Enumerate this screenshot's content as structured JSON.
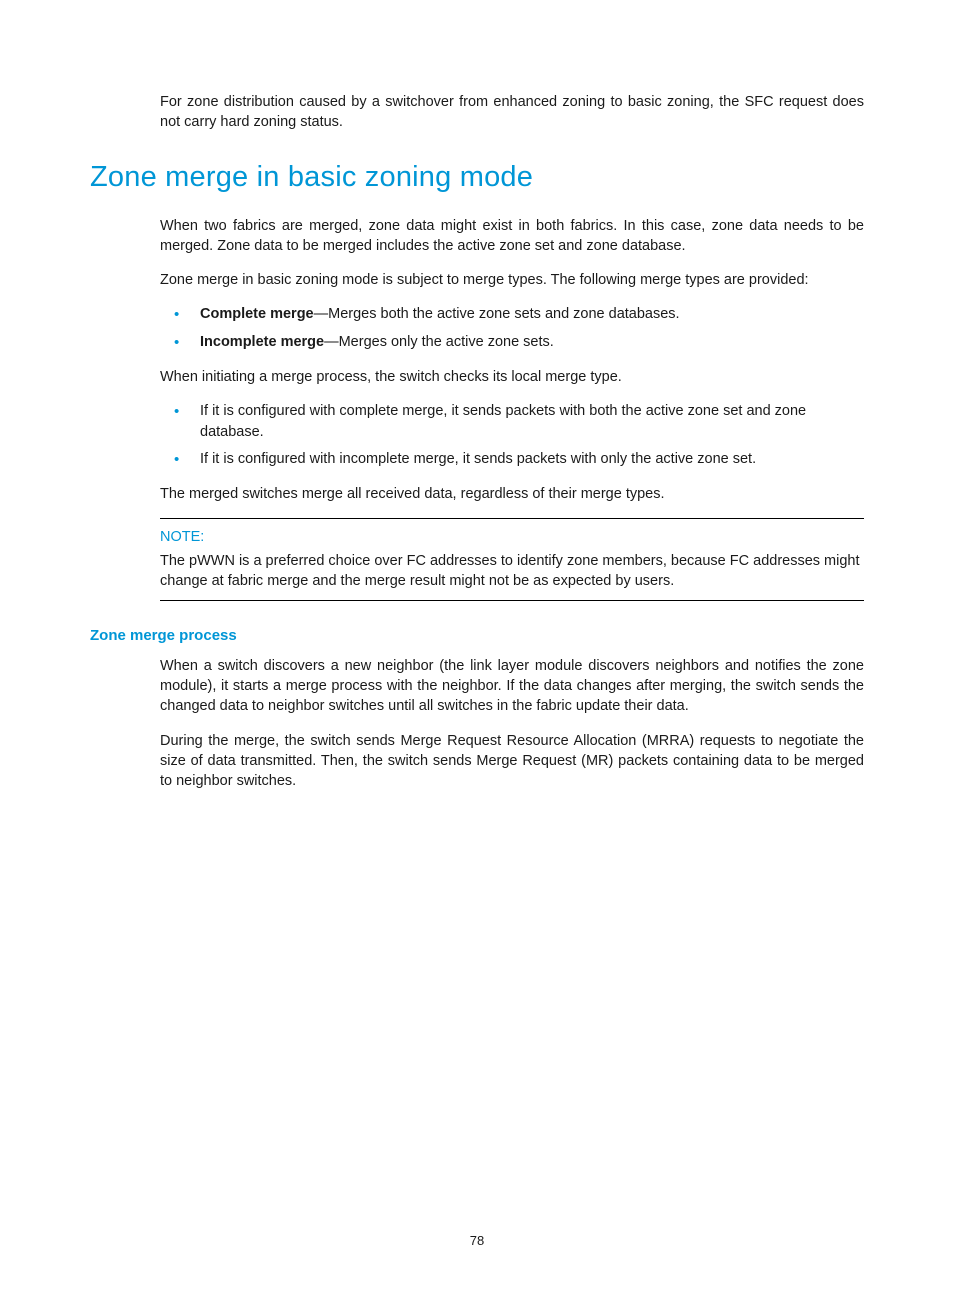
{
  "colors": {
    "accent": "#0096d6",
    "text": "#1a1a1a",
    "rule": "#000000",
    "background": "#ffffff"
  },
  "typography": {
    "body_fontsize_pt": 11,
    "h1_fontsize_pt": 22,
    "h3_fontsize_pt": 11,
    "font_family": "Arial"
  },
  "intro": "For zone distribution caused by a switchover from enhanced zoning to basic zoning, the SFC request does not carry hard zoning status.",
  "h1": "Zone merge in basic zoning mode",
  "p1": "When two fabrics are merged, zone data might exist in both fabrics. In this case, zone data needs to be merged. Zone data to be merged includes the active zone set and zone database.",
  "p2": "Zone merge in basic zoning mode is subject to merge types. The following merge types are provided:",
  "merge_types": [
    {
      "term": "Complete merge",
      "desc": "—Merges both the active zone sets and zone databases."
    },
    {
      "term": "Incomplete merge",
      "desc": "—Merges only the active zone sets."
    }
  ],
  "p3": "When initiating a merge process, the switch checks its local merge type.",
  "config_items": [
    "If it is configured with complete merge, it sends packets with both the active zone set and zone database.",
    "If it is configured with incomplete merge, it sends packets with only the active zone set."
  ],
  "p4": "The merged switches merge all received data, regardless of their merge types.",
  "note": {
    "label": "NOTE:",
    "text": "The pWWN is a preferred choice over FC addresses to identify zone members, because FC addresses might change at fabric merge and the merge result might not be as expected by users."
  },
  "h3": "Zone merge process",
  "p5": "When a switch discovers a new neighbor (the link layer module discovers neighbors and notifies the zone module), it starts a merge process with the neighbor. If the data changes after merging, the switch sends the changed data to neighbor switches until all switches in the fabric update their data.",
  "p6": "During the merge, the switch sends Merge Request Resource Allocation (MRRA) requests to negotiate the size of data transmitted. Then, the switch sends Merge Request (MR) packets containing data to be merged to neighbor switches.",
  "page_number": "78"
}
